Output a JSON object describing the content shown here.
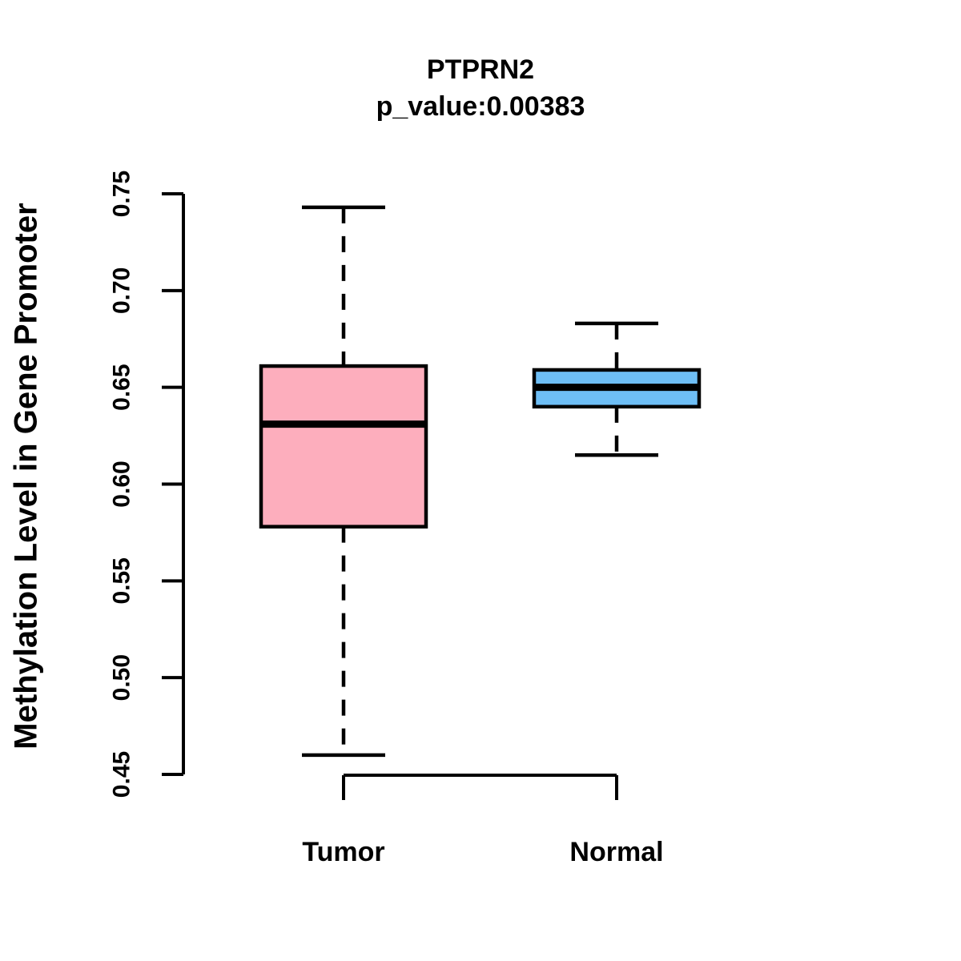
{
  "chart_data": {
    "type": "boxplot",
    "title": "PTPRN2",
    "subtitle": "p_value:0.00383",
    "p_value": 0.00383,
    "gene": "PTPRN2",
    "ylabel": "Methylation Level in Gene Promoter",
    "xlabel": "",
    "categories": [
      "Tumor",
      "Normal"
    ],
    "ylim": [
      0.45,
      0.75
    ],
    "y_ticks": [
      "0.45",
      "0.50",
      "0.55",
      "0.60",
      "0.65",
      "0.70",
      "0.75"
    ],
    "grid": false,
    "legend": "none",
    "series": [
      {
        "name": "Tumor",
        "lower_whisker": 0.46,
        "q1": 0.578,
        "median": 0.631,
        "q3": 0.661,
        "upper_whisker": 0.743,
        "fill_color": "#FDAEBD"
      },
      {
        "name": "Normal",
        "lower_whisker": 0.615,
        "q1": 0.64,
        "median": 0.65,
        "q3": 0.659,
        "upper_whisker": 0.683,
        "fill_color": "#6EBEF5"
      }
    ],
    "colors": {
      "box_border": "#000000",
      "median_line": "#000000",
      "whisker": "#000000",
      "axis": "#000000",
      "text": "#000000",
      "background": "#ffffff"
    }
  }
}
